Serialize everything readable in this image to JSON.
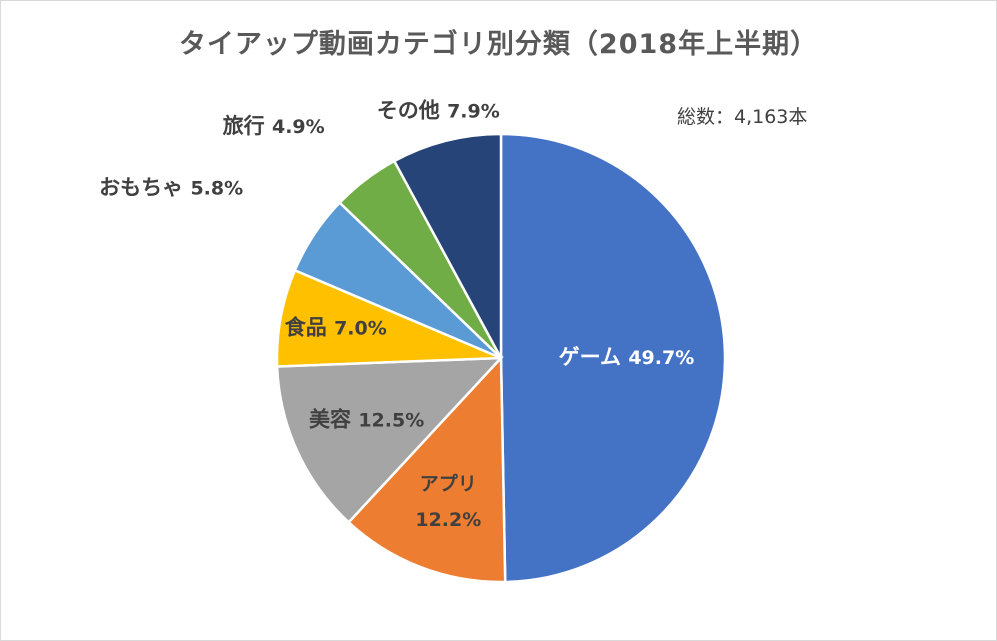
{
  "chart_data": {
    "type": "pie",
    "title": "タイアップ動画カテゴリ別分類（2018年上半期）",
    "annotation": "総数：4,163本",
    "slices": [
      {
        "label": "ゲーム",
        "value": 49.7,
        "value_text": "49.7%",
        "color": "#4472c4",
        "label_color": "#ffffff"
      },
      {
        "label": "アプリ",
        "value": 12.2,
        "value_text": "12.2%",
        "color": "#ed7d31",
        "label_color": "#404040"
      },
      {
        "label": "美容",
        "value": 12.5,
        "value_text": "12.5%",
        "color": "#a5a5a5",
        "label_color": "#404040"
      },
      {
        "label": "食品",
        "value": 7.0,
        "value_text": "7.0%",
        "color": "#ffc000",
        "label_color": "#404040"
      },
      {
        "label": "おもちゃ",
        "value": 5.8,
        "value_text": "5.8%",
        "color": "#5b9bd5",
        "label_color": "#404040"
      },
      {
        "label": "旅行",
        "value": 4.9,
        "value_text": "4.9%",
        "color": "#70ad47",
        "label_color": "#404040"
      },
      {
        "label": "その他",
        "value": 7.9,
        "value_text": "7.9%",
        "color": "#264478",
        "label_color": "#404040"
      }
    ]
  }
}
